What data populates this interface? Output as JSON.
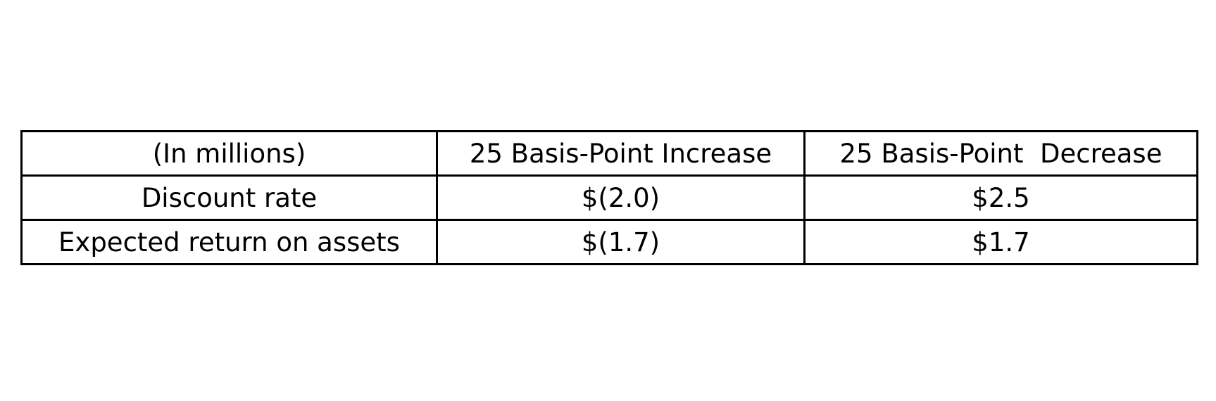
{
  "chart_data": {
    "type": "table",
    "columns": [
      "(In millions)",
      "25 Basis-Point Increase",
      "25 Basis-Point  Decrease"
    ],
    "rows": [
      [
        "Discount rate",
        "$(2.0)",
        "$2.5"
      ],
      [
        "Expected return on assets",
        "$(1.7)",
        "$1.7"
      ]
    ],
    "values": {
      "discount_rate": {
        "increase": -2.0,
        "decrease": 2.5
      },
      "expected_return_on_assets": {
        "increase": -1.7,
        "decrease": 1.7
      }
    }
  }
}
